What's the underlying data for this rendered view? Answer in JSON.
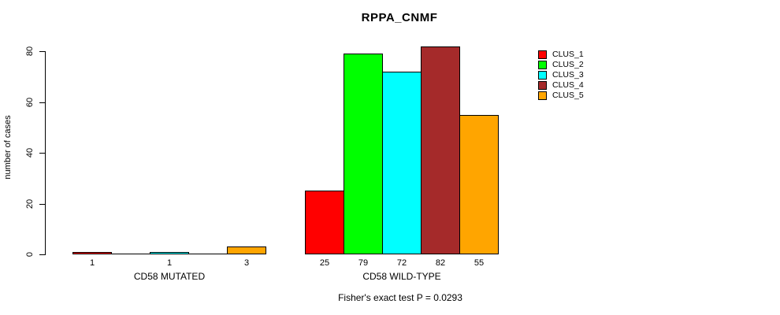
{
  "chart_data": {
    "type": "bar",
    "title": "RPPA_CNMF",
    "ylabel": "number of cases",
    "xlabel": "",
    "ylim": [
      0,
      82
    ],
    "yticks": [
      0,
      20,
      40,
      60,
      80
    ],
    "grid": false,
    "legend_position": "right",
    "categories": [
      "CD58 MUTATED",
      "CD58 WILD-TYPE"
    ],
    "series": [
      {
        "name": "CLUS_1",
        "color": "#FF0000",
        "values": [
          1,
          25
        ]
      },
      {
        "name": "CLUS_2",
        "color": "#00FF00",
        "values": [
          0,
          79
        ]
      },
      {
        "name": "CLUS_3",
        "color": "#00FFFF",
        "values": [
          1,
          72
        ]
      },
      {
        "name": "CLUS_4",
        "color": "#A52A2A",
        "values": [
          0,
          82
        ]
      },
      {
        "name": "CLUS_5",
        "color": "#FFA500",
        "values": [
          3,
          55
        ]
      }
    ],
    "bar_value_labels": [
      [
        "1",
        "",
        "1",
        "",
        "3"
      ],
      [
        "25",
        "79",
        "72",
        "82",
        "55"
      ]
    ],
    "annotation": "Fisher's exact test P = 0.0293"
  }
}
